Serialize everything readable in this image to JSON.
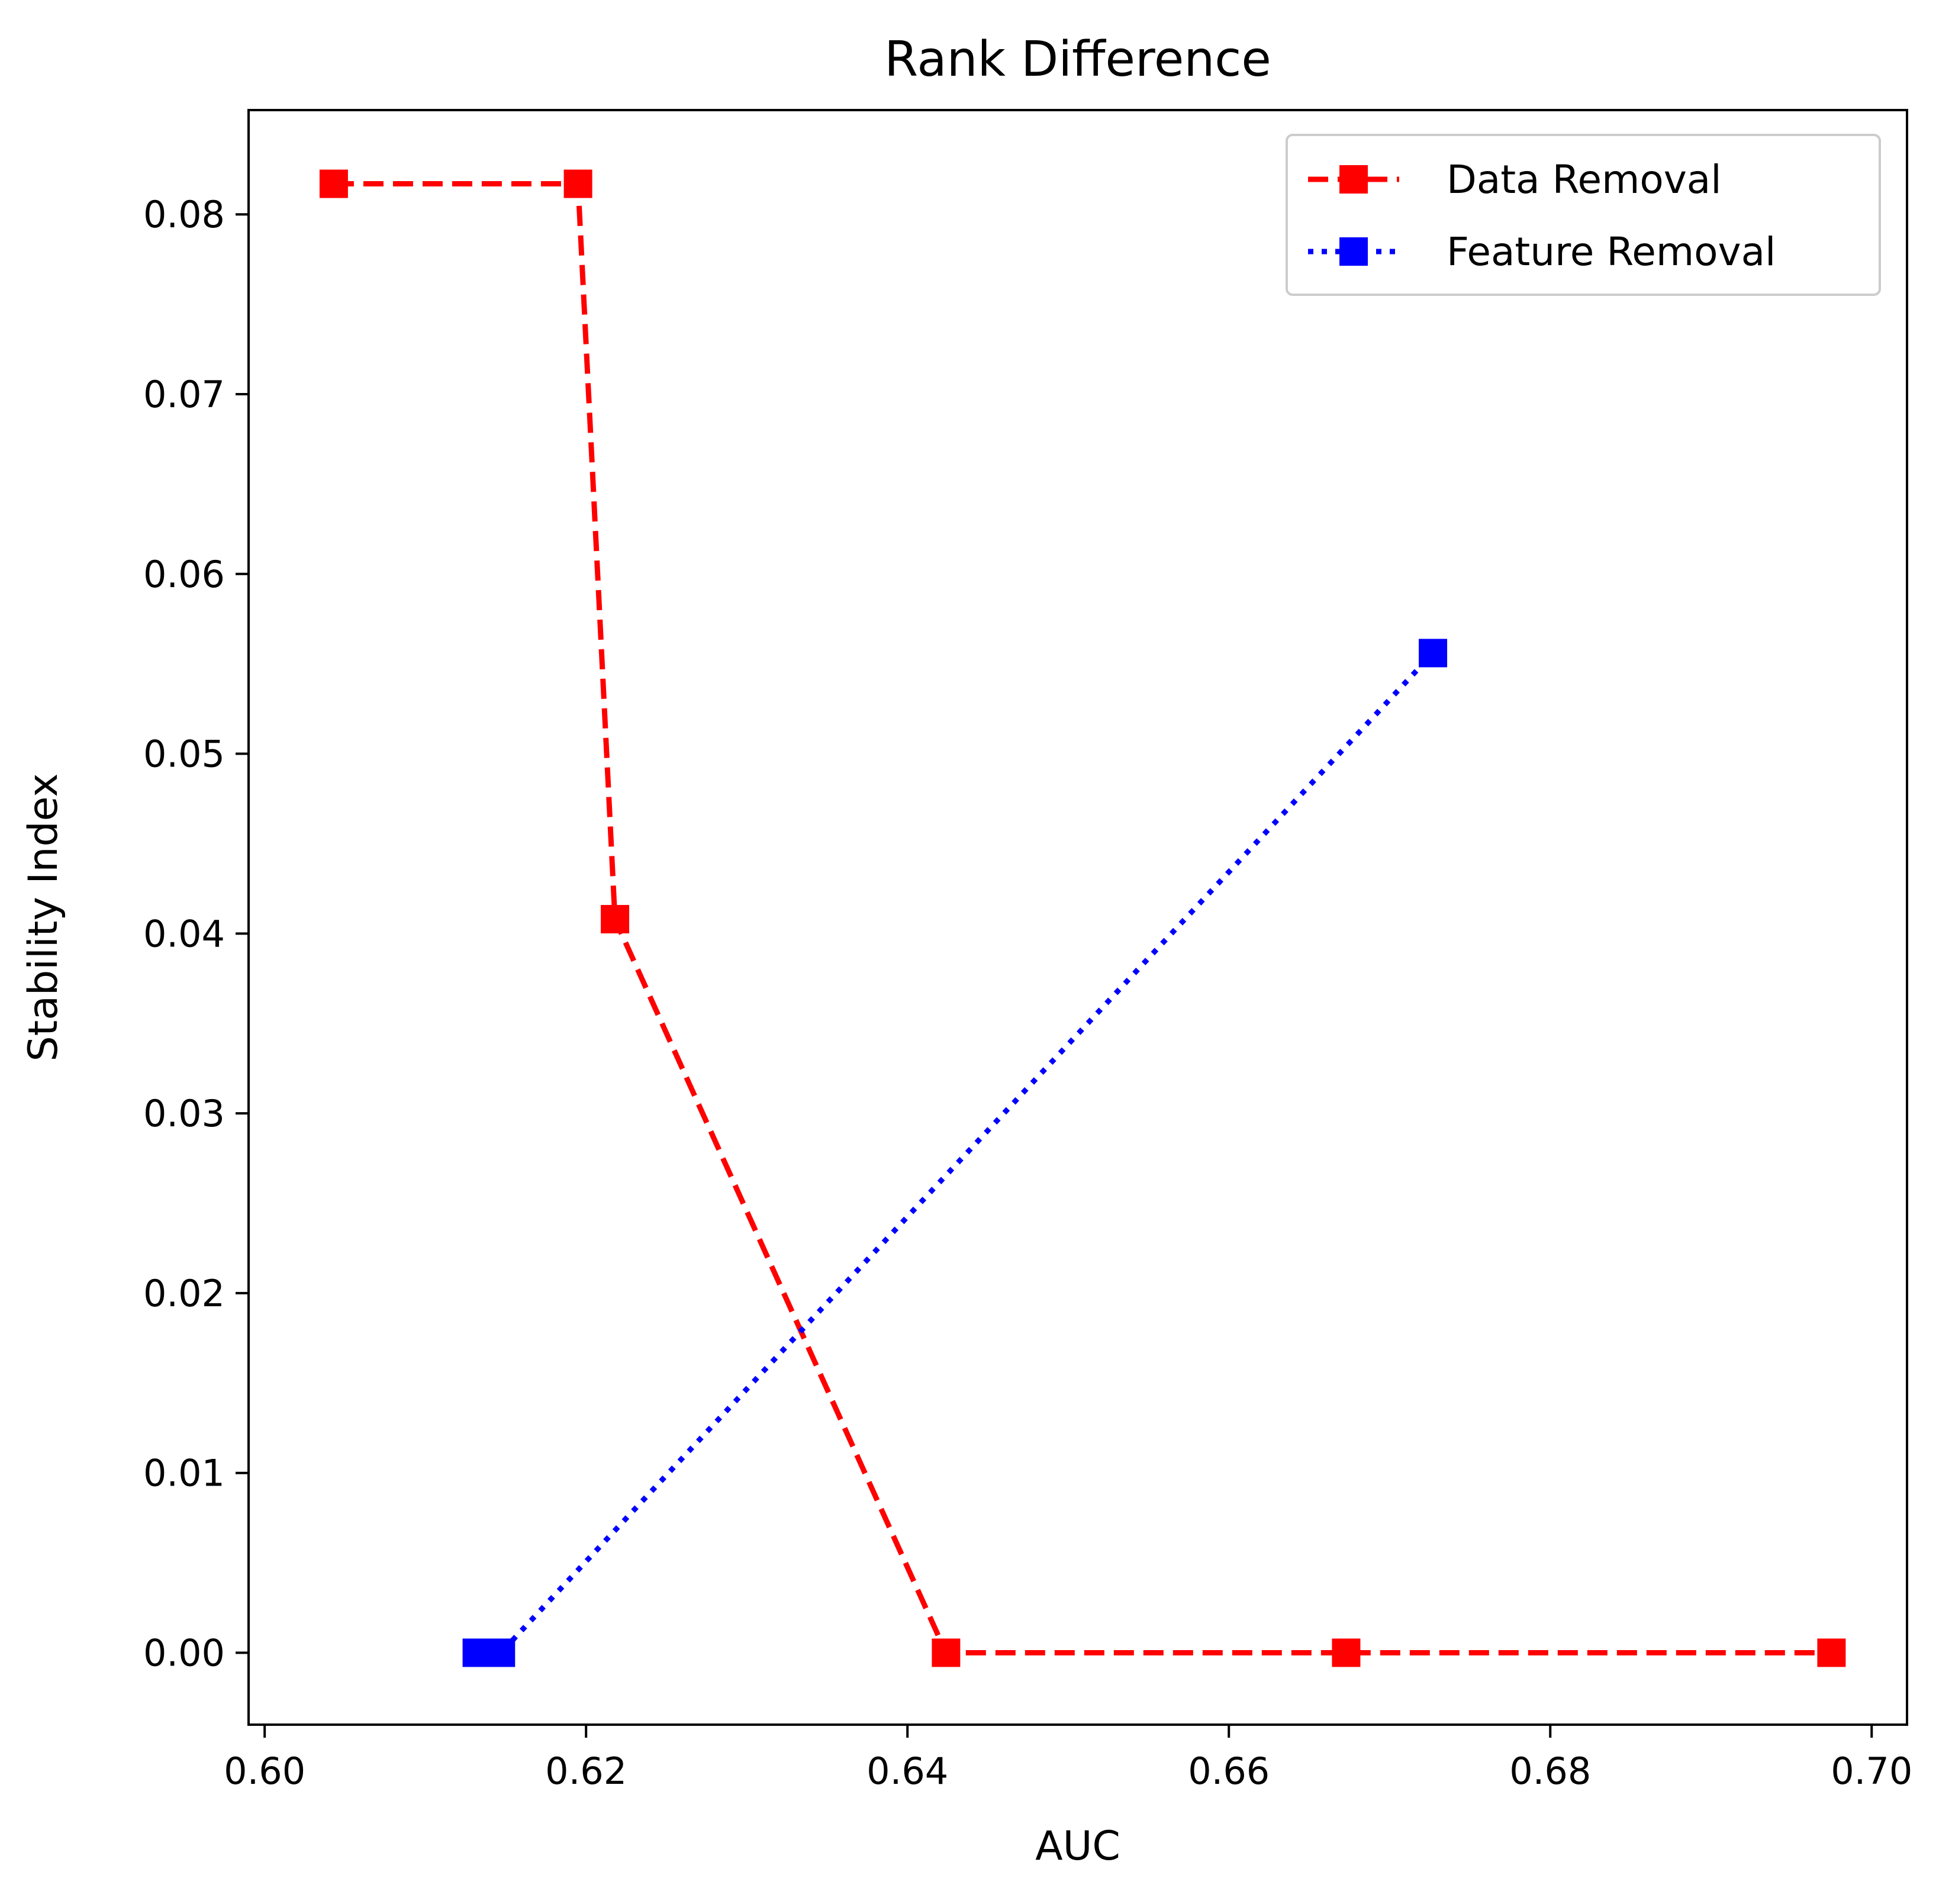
{
  "chart_data": {
    "type": "line",
    "title": "Rank Difference",
    "xlabel": "AUC",
    "ylabel": "Stability Index",
    "xlim": [
      0.599,
      0.7022
    ],
    "ylim": [
      -0.004,
      0.0858
    ],
    "xticks": [
      0.6,
      0.62,
      0.64,
      0.66,
      0.68,
      0.7
    ],
    "xtick_labels": [
      "0.60",
      "0.62",
      "0.64",
      "0.66",
      "0.68",
      "0.70"
    ],
    "yticks": [
      0.0,
      0.01,
      0.02,
      0.03,
      0.04,
      0.05,
      0.06,
      0.07,
      0.08
    ],
    "ytick_labels": [
      "0.00",
      "0.01",
      "0.02",
      "0.03",
      "0.04",
      "0.05",
      "0.06",
      "0.07",
      "0.08"
    ],
    "grid": false,
    "legend_position": "top-right",
    "series": [
      {
        "name": "Data Removal",
        "color": "#ff0000",
        "line_style": "dashed",
        "marker": "square",
        "x": [
          0.6043,
          0.6195,
          0.6218,
          0.6424,
          0.6673,
          0.6975
        ],
        "y": [
          0.0817,
          0.0817,
          0.0408,
          0.0,
          0.0,
          0.0
        ]
      },
      {
        "name": "Feature Removal",
        "color": "#0000ff",
        "line_style": "dotted",
        "marker": "square",
        "x": [
          0.6132,
          0.6147,
          0.6727
        ],
        "y": [
          0.0,
          0.0,
          0.0556
        ]
      }
    ]
  }
}
